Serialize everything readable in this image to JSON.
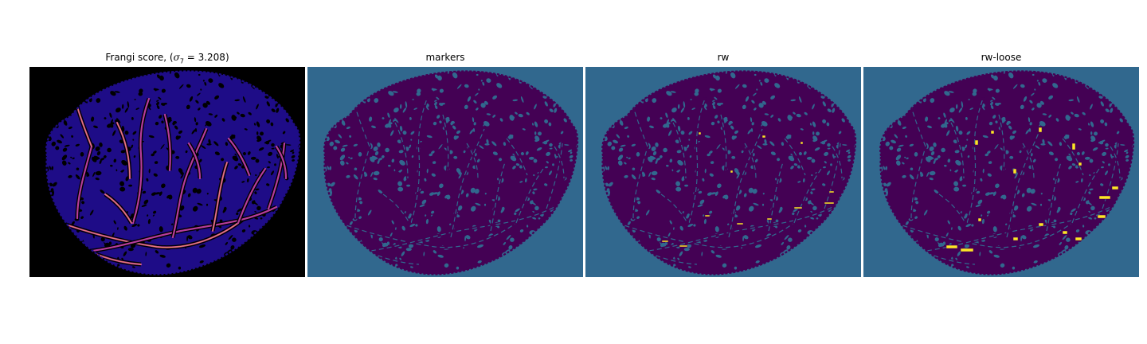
{
  "figure": {
    "panels": [
      {
        "id": "frangi",
        "title_prefix": "Frangi score, (",
        "title_symbol": "σ",
        "title_subscript": "7",
        "title_suffix": " = 3.208)",
        "kind": "frangi",
        "background": "#000000",
        "tissue_color": "#1e0c87",
        "vessel_color": "#b63c9b",
        "highlight_color": "#f89d5a"
      },
      {
        "id": "markers",
        "title": "markers",
        "kind": "markers",
        "background": "#31688e",
        "tissue_color": "#440154",
        "pore_color": "#31688e",
        "highlight_color": "#fde725"
      },
      {
        "id": "rw",
        "title": "rw",
        "kind": "rw",
        "background": "#31688e",
        "tissue_color": "#440154",
        "pore_color": "#31688e",
        "highlight_color": "#fde725"
      },
      {
        "id": "rw-loose",
        "title": "rw-loose",
        "kind": "rw-loose",
        "background": "#31688e",
        "tissue_color": "#440154",
        "pore_color": "#31688e",
        "highlight_color": "#fde725"
      }
    ]
  }
}
